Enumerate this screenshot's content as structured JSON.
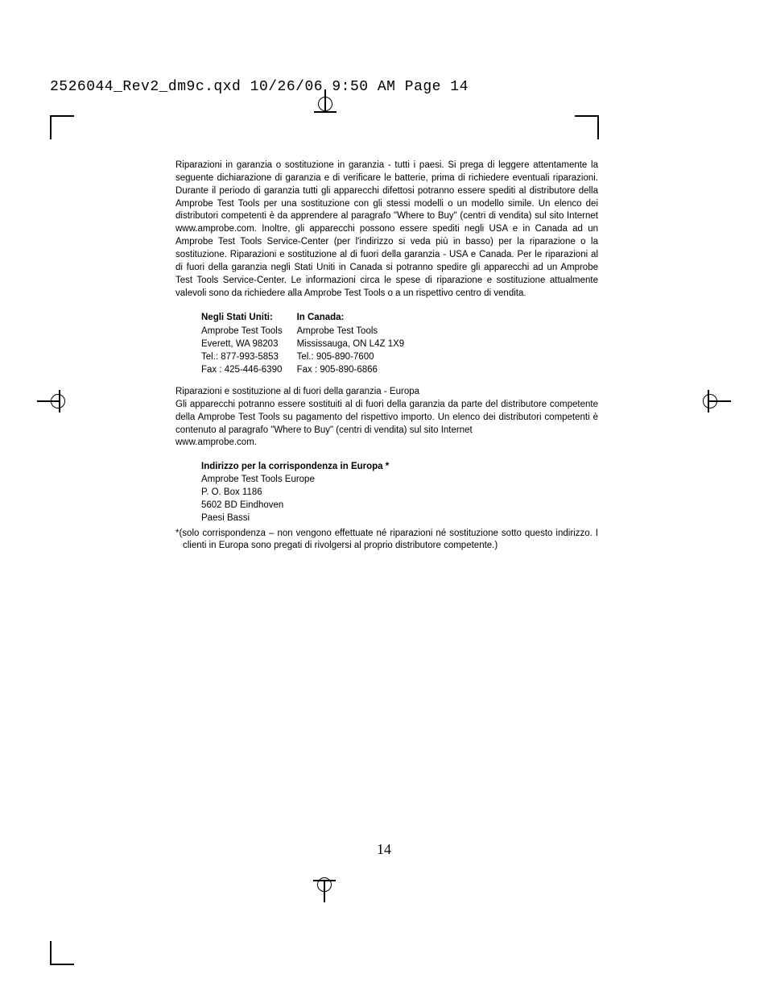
{
  "header": {
    "text": "2526044_Rev2_dm9c.qxd  10/26/06  9:50 AM  Page 14"
  },
  "para1": "Riparazioni in garanzia o sostituzione in garanzia - tutti i paesi. Si prega di leggere attentamente la seguente dichiarazione di garanzia e di verificare le batterie, prima di richiedere eventuali riparazioni. Durante il periodo di garanzia tutti gli apparecchi difettosi potranno essere spediti al distributore della Amprobe Test Tools per una sostituzione con gli stessi modelli o un modello simile. Un elenco dei distributori competenti è da apprendere al paragrafo \"Where to Buy\" (centri di vendita) sul sito Internet www.amprobe.com. Inoltre, gli apparecchi possono essere spediti negli USA e in Canada ad un Amprobe Test Tools Service-Center (per l'indirizzo si veda più in basso) per la riparazione o la sostituzione. Riparazioni e sostituzione al di fuori della garanzia - USA e Canada. Per le riparazioni al di fuori della garanzia negli Stati Uniti in Canada si potranno spedire gli apparecchi ad un Amprobe Test Tools Service-Center. Le informazioni circa le spese di riparazione e sostituzione attualmente valevoli sono da richiedere alla Amprobe Test Tools o a un rispettivo centro di vendita.",
  "addresses": {
    "us": {
      "title": "Negli Stati Uniti:",
      "line1": "Amprobe Test Tools",
      "line2": "Everett, WA 98203",
      "line3": "Tel.: 877-993-5853",
      "line4": "Fax : 425-446-6390"
    },
    "canada": {
      "title": "In Canada:",
      "line1": "Amprobe Test Tools",
      "line2": "Mississauga, ON L4Z 1X9",
      "line3": "Tel.: 905-890-7600",
      "line4": "Fax : 905-890-6866"
    }
  },
  "para2_intro": "Riparazioni e sostituzione al di fuori della garanzia - Europa",
  "para2_body": "Gli apparecchi potranno essere sostituiti al di fuori della garanzia da parte del distributore competente della Amprobe Test Tools su pagamento del rispettivo importo. Un elenco dei distributori competenti è contenuto al paragrafo \"Where to Buy\" (centri di vendita) sul sito Internet",
  "para2_url": "www.amprobe.com.",
  "europe": {
    "title": "Indirizzo per la corrispondenza in Europa *",
    "line1": "Amprobe Test Tools Europe",
    "line2": "P. O. Box 1186",
    "line3": "5602 BD Eindhoven",
    "line4": "Paesi Bassi"
  },
  "footnote": "*(solo corrispondenza – non vengono effettuate né riparazioni né sostituzione sotto questo indirizzo. I clienti in Europa sono pregati di rivolgersi al proprio distributore competente.)",
  "page_number": "14"
}
